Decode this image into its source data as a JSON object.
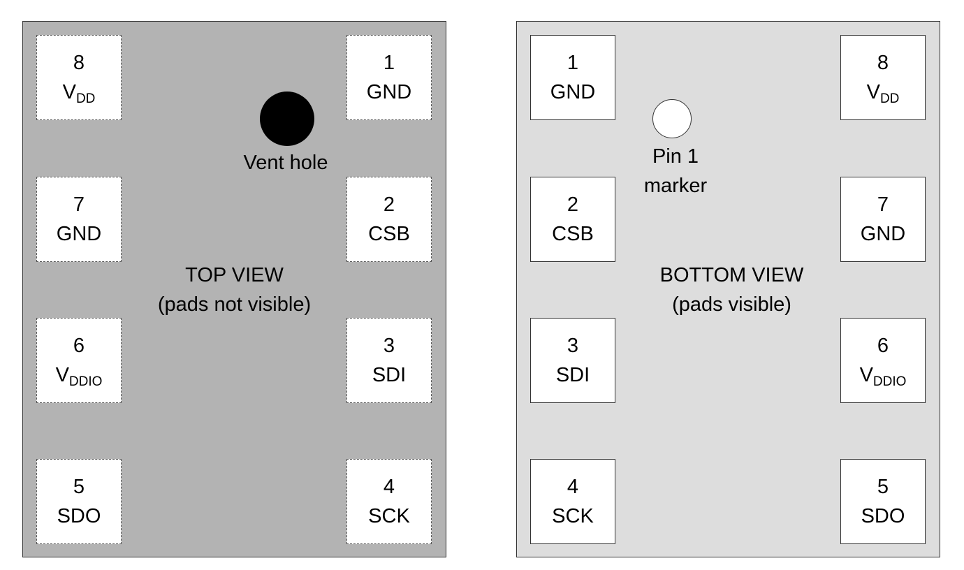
{
  "top_view": {
    "title": "TOP VIEW",
    "subtitle": "(pads not visible)",
    "vent_label": "Vent hole",
    "pads": [
      {
        "num": "8",
        "name": "V",
        "sub": "DD"
      },
      {
        "num": "1",
        "name": "GND",
        "sub": ""
      },
      {
        "num": "7",
        "name": "GND",
        "sub": ""
      },
      {
        "num": "2",
        "name": "CSB",
        "sub": ""
      },
      {
        "num": "6",
        "name": "V",
        "sub": "DDIO"
      },
      {
        "num": "3",
        "name": "SDI",
        "sub": ""
      },
      {
        "num": "5",
        "name": "SDO",
        "sub": ""
      },
      {
        "num": "4",
        "name": "SCK",
        "sub": ""
      }
    ]
  },
  "bottom_view": {
    "title": "BOTTOM VIEW",
    "subtitle": "(pads visible)",
    "marker_label_line1": "Pin 1",
    "marker_label_line2": "marker",
    "pads": [
      {
        "num": "1",
        "name": "GND",
        "sub": ""
      },
      {
        "num": "8",
        "name": "V",
        "sub": "DD"
      },
      {
        "num": "2",
        "name": "CSB",
        "sub": ""
      },
      {
        "num": "7",
        "name": "GND",
        "sub": ""
      },
      {
        "num": "3",
        "name": "SDI",
        "sub": ""
      },
      {
        "num": "6",
        "name": "V",
        "sub": "DDIO"
      },
      {
        "num": "4",
        "name": "SCK",
        "sub": ""
      },
      {
        "num": "5",
        "name": "SDO",
        "sub": ""
      }
    ]
  },
  "colors": {
    "top_body": "#b3b3b3",
    "bottom_body": "#dddddd",
    "pad_fill": "#ffffff",
    "vent_hole": "#000000"
  }
}
